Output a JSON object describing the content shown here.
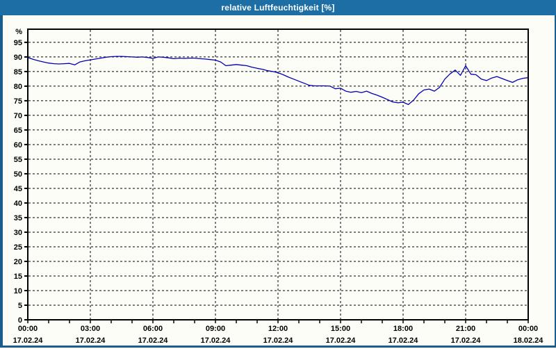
{
  "window": {
    "title": "relative Luftfeuchtigkeit [%]",
    "title_bar_color": "#1d6ea4",
    "border_color": "#1b5c8e",
    "background_color": "#fdfdf7"
  },
  "chart_data": {
    "type": "line",
    "title": "relative Luftfeuchtigkeit [%]",
    "legend": "none",
    "grid": "dashed",
    "grid_color": "#000000",
    "plot_background": "#fdfdf7",
    "x_axis": {
      "kind": "time",
      "range_hours": [
        0,
        24
      ],
      "minor_tick_every_hours": 1,
      "major_tick_every_hours": 3,
      "ticks": [
        {
          "hour": 0,
          "time": "00:00",
          "date": "17.02.24"
        },
        {
          "hour": 3,
          "time": "03:00",
          "date": "17.02.24"
        },
        {
          "hour": 6,
          "time": "06:00",
          "date": "17.02.24"
        },
        {
          "hour": 9,
          "time": "09:00",
          "date": "17.02.24"
        },
        {
          "hour": 12,
          "time": "12:00",
          "date": "17.02.24"
        },
        {
          "hour": 15,
          "time": "15:00",
          "date": "17.02.24"
        },
        {
          "hour": 18,
          "time": "18:00",
          "date": "17.02.24"
        },
        {
          "hour": 21,
          "time": "21:00",
          "date": "17.02.24"
        },
        {
          "hour": 24,
          "time": "00:00",
          "date": "18.02.24"
        }
      ]
    },
    "y_axis": {
      "unit_label": "%",
      "range": [
        0,
        99.5
      ],
      "tick_values": [
        0,
        5,
        10,
        15,
        20,
        25,
        30,
        35,
        40,
        45,
        50,
        55,
        60,
        65,
        70,
        75,
        80,
        85,
        90,
        95
      ]
    },
    "series": [
      {
        "name": "relative Luftfeuchtigkeit",
        "unit": "%",
        "color": "#0000b3",
        "x_start_hour": 0,
        "x_step_hours": 0.25,
        "values": [
          89.8,
          89.2,
          88.7,
          88.3,
          87.9,
          87.7,
          87.6,
          87.7,
          87.8,
          87.3,
          88.3,
          88.7,
          89.0,
          89.3,
          89.6,
          89.9,
          90.1,
          90.2,
          90.2,
          90.1,
          90.0,
          89.9,
          90.0,
          89.8,
          89.5,
          90.0,
          89.9,
          89.7,
          89.4,
          89.6,
          89.5,
          89.6,
          89.6,
          89.4,
          89.3,
          89.1,
          88.9,
          88.3,
          87.0,
          87.2,
          87.4,
          87.2,
          87.0,
          86.5,
          86.1,
          85.8,
          85.3,
          85.0,
          84.6,
          83.9,
          83.1,
          82.4,
          81.7,
          81.0,
          80.3,
          80.1,
          80.1,
          80.1,
          80.0,
          79.1,
          79.3,
          78.3,
          77.9,
          78.2,
          77.8,
          78.3,
          77.5,
          76.9,
          76.2,
          75.4,
          74.6,
          74.3,
          74.5,
          73.7,
          75.2,
          77.4,
          78.7,
          79.0,
          78.3,
          79.6,
          82.4,
          84.2,
          85.5,
          83.7,
          87.0,
          84.1,
          83.9,
          82.4,
          81.9,
          82.8,
          83.3,
          82.6,
          81.9,
          81.3,
          82.2,
          82.7,
          82.9
        ]
      }
    ]
  }
}
